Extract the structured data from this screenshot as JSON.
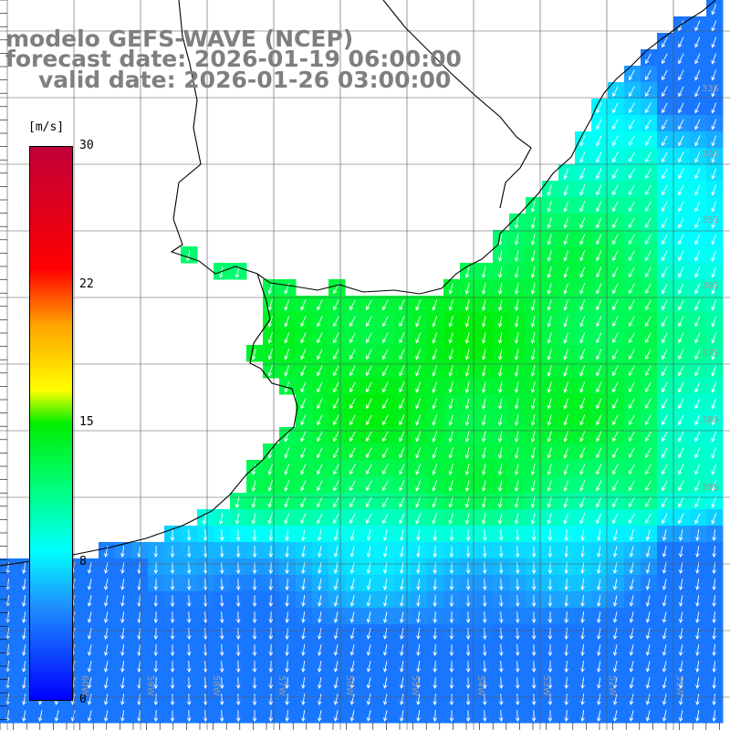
{
  "title": {
    "line1": "modelo GEFS-WAVE (NCEP)",
    "line2": "forecast date: 2026-01-19 06:00:00",
    "line3": "valid date: 2026-01-26 03:00:00"
  },
  "colorbar": {
    "unit": "[m/s]",
    "ticks": [
      "30",
      "22",
      "15",
      "8",
      "0"
    ],
    "range": [
      0,
      30
    ],
    "colors": [
      "#0000ff",
      "#1e90ff",
      "#00ffff",
      "#00ff80",
      "#00ee00",
      "#ffff00",
      "#ffa000",
      "#ff0000",
      "#c0003a"
    ]
  },
  "grid": {
    "lat_labels": [
      "33S",
      "34S",
      "35S",
      "36S",
      "37S",
      "38S",
      "39S"
    ],
    "lon_labels": [
      "60W",
      "59W",
      "58W",
      "57W",
      "56W",
      "55W",
      "54W",
      "53W",
      "52W",
      "51W"
    ]
  },
  "colors": {
    "land": "#ffffff",
    "coast": "#000000",
    "gridline": "#555555",
    "arrow": "#ffffff",
    "title": "#7f7f7f"
  }
}
